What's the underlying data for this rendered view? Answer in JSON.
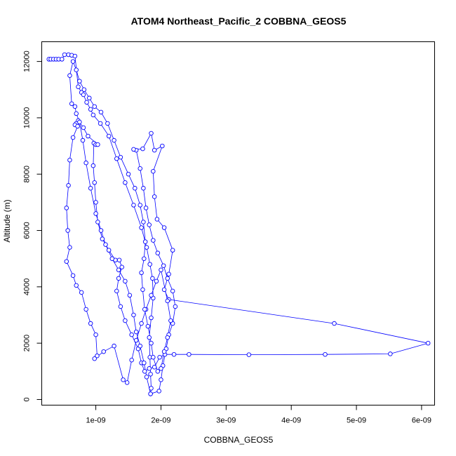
{
  "chart_data": {
    "type": "scatter",
    "title": "ATOM4 Northeast_Pacific_2 COBBNA_GEOS5",
    "xlabel": "COBBNA_GEOS5",
    "ylabel": "Altitude (m)",
    "xlim": [
      1.7e-10,
      6.2e-09
    ],
    "ylim": [
      -200,
      12700
    ],
    "x_ticks": [
      1e-09,
      2e-09,
      3e-09,
      4e-09,
      5e-09,
      6e-09
    ],
    "x_tick_labels": [
      "1e-09",
      "2e-09",
      "3e-09",
      "4e-09",
      "5e-09",
      "6e-09"
    ],
    "y_ticks": [
      0,
      2000,
      4000,
      6000,
      8000,
      10000,
      12000
    ],
    "y_tick_labels": [
      "0",
      "2000",
      "4000",
      "6000",
      "8000",
      "10000",
      "12000"
    ],
    "grid": false,
    "series": [
      {
        "color": "#0000ff",
        "marker": "open-circle",
        "connected": true,
        "points": [
          [
            2.8e-10,
            12080
          ],
          [
            3.1e-10,
            12080
          ],
          [
            3.5e-10,
            12080
          ],
          [
            3.9e-10,
            12080
          ],
          [
            4.3e-10,
            12080
          ],
          [
            4.8e-10,
            12080
          ],
          [
            5.2e-10,
            12240
          ],
          [
            5.8e-10,
            12240
          ],
          [
            6.3e-10,
            12220
          ],
          [
            6.8e-10,
            12190
          ],
          [
            7.3e-10,
            11100
          ],
          [
            7.8e-10,
            10900
          ],
          [
            8.1e-10,
            10820
          ],
          [
            8.6e-10,
            10550
          ],
          [
            9.2e-10,
            10300
          ],
          [
            9.6e-10,
            10100
          ],
          [
            1.07e-09,
            9800
          ],
          [
            1.2e-09,
            9350
          ],
          [
            1.32e-09,
            8550
          ],
          [
            1.45e-09,
            7700
          ],
          [
            1.58e-09,
            6900
          ],
          [
            1.7e-09,
            6100
          ],
          [
            1.78e-09,
            5400
          ],
          [
            1.83e-09,
            4800
          ],
          [
            1.87e-09,
            4300
          ],
          [
            1.88e-09,
            3600
          ],
          [
            1.85e-09,
            2900
          ],
          [
            1.82e-09,
            2200
          ],
          [
            1.83e-09,
            1500
          ],
          [
            1.84e-09,
            900
          ],
          [
            1.85e-09,
            400
          ],
          [
            1.84e-09,
            200
          ],
          [
            1.97e-09,
            300
          ],
          [
            2e-09,
            700
          ],
          [
            2.03e-09,
            1200
          ],
          [
            2.08e-09,
            1800
          ],
          [
            2.12e-09,
            2300
          ],
          [
            2.18e-09,
            2700
          ],
          [
            2.22e-09,
            3300
          ],
          [
            2.18e-09,
            3850
          ],
          [
            2.1e-09,
            4300
          ],
          [
            2.04e-09,
            4750
          ],
          [
            1.95e-09,
            5200
          ],
          [
            1.88e-09,
            5650
          ],
          [
            1.82e-09,
            6200
          ],
          [
            1.77e-09,
            6800
          ],
          [
            1.73e-09,
            7500
          ],
          [
            1.68e-09,
            8200
          ],
          [
            1.62e-09,
            8850
          ],
          [
            1.58e-09,
            8880
          ],
          [
            1.72e-09,
            8900
          ],
          [
            1.85e-09,
            9450
          ],
          [
            1.9e-09,
            8850
          ],
          [
            2.02e-09,
            9000
          ],
          [
            1.88e-09,
            8100
          ],
          [
            1.9e-09,
            7200
          ],
          [
            1.94e-09,
            6400
          ],
          [
            2.05e-09,
            6100
          ],
          [
            2.18e-09,
            5300
          ],
          [
            2.12e-09,
            4450
          ],
          [
            2.05e-09,
            3900
          ],
          [
            2.12e-09,
            3550
          ],
          [
            4.66e-09,
            2700
          ],
          [
            6.1e-09,
            2000
          ],
          [
            5.52e-09,
            1620
          ],
          [
            4.52e-09,
            1600
          ],
          [
            3.35e-09,
            1590
          ],
          [
            2.43e-09,
            1600
          ],
          [
            2.2e-09,
            1600
          ],
          [
            2.06e-09,
            1600
          ],
          [
            1.98e-09,
            1500
          ],
          [
            1.9e-09,
            1150
          ],
          [
            1.82e-09,
            1100
          ],
          [
            1.75e-09,
            1000
          ],
          [
            1.7e-09,
            1300
          ],
          [
            1.65e-09,
            1800
          ],
          [
            1.55e-09,
            2300
          ],
          [
            1.45e-09,
            2800
          ],
          [
            1.38e-09,
            3300
          ],
          [
            1.32e-09,
            3850
          ],
          [
            1.35e-09,
            4300
          ],
          [
            1.4e-09,
            4700
          ],
          [
            1.36e-09,
            4950
          ],
          [
            1.3e-09,
            4950
          ],
          [
            1.2e-09,
            5300
          ],
          [
            1.1e-09,
            5700
          ],
          [
            1.03e-09,
            6300
          ],
          [
            1e-09,
            7000
          ],
          [
            9.8e-10,
            7700
          ],
          [
            9.6e-10,
            8300
          ],
          [
            9.7e-10,
            9100
          ],
          [
            1e-09,
            9050
          ],
          [
            1.03e-09,
            9050
          ],
          [
            8.8e-10,
            9350
          ],
          [
            8.1e-10,
            9650
          ],
          [
            7.3e-10,
            9900
          ],
          [
            7e-10,
            9800
          ],
          [
            6.8e-10,
            9750
          ],
          [
            7.2e-10,
            9700
          ],
          [
            6.5e-10,
            9300
          ],
          [
            6e-10,
            8500
          ],
          [
            5.8e-10,
            7600
          ],
          [
            5.5e-10,
            6800
          ],
          [
            5.7e-10,
            6000
          ],
          [
            6e-10,
            5400
          ],
          [
            5.5e-10,
            4900
          ],
          [
            6.5e-10,
            4400
          ],
          [
            7e-10,
            4050
          ],
          [
            7.8e-10,
            3800
          ],
          [
            8.5e-10,
            3200
          ],
          [
            9.2e-10,
            2700
          ],
          [
            1e-09,
            2300
          ],
          [
            1.02e-09,
            1550
          ],
          [
            9.8e-10,
            1450
          ],
          [
            1.12e-09,
            1700
          ],
          [
            1.28e-09,
            1900
          ],
          [
            1.42e-09,
            700
          ],
          [
            1.48e-09,
            600
          ],
          [
            1.55e-09,
            1400
          ],
          [
            1.62e-09,
            2100
          ],
          [
            1.7e-09,
            2700
          ],
          [
            1.77e-09,
            3200
          ],
          [
            1.85e-09,
            3700
          ],
          [
            1.93e-09,
            4200
          ],
          [
            2e-09,
            4600
          ],
          [
            2.1e-09,
            3500
          ],
          [
            2.15e-09,
            2800
          ],
          [
            2.1e-09,
            2200
          ],
          [
            2.05e-09,
            1700
          ],
          [
            2e-09,
            1100
          ],
          [
            1.95e-09,
            1000
          ],
          [
            1.88e-09,
            1500
          ],
          [
            1.85e-09,
            2000
          ],
          [
            1.8e-09,
            2600
          ],
          [
            1.75e-09,
            3200
          ],
          [
            1.72e-09,
            3900
          ],
          [
            1.7e-09,
            4500
          ],
          [
            1.74e-09,
            5000
          ],
          [
            1.76e-09,
            5600
          ],
          [
            1.73e-09,
            6300
          ],
          [
            1.68e-09,
            6900
          ],
          [
            1.6e-09,
            7500
          ],
          [
            1.5e-09,
            8000
          ],
          [
            1.38e-09,
            8600
          ],
          [
            1.28e-09,
            9200
          ],
          [
            1.18e-09,
            9800
          ],
          [
            1.08e-09,
            10200
          ],
          [
            9.8e-10,
            10400
          ],
          [
            9e-10,
            10700
          ],
          [
            8.2e-10,
            11000
          ],
          [
            7.5e-10,
            11300
          ],
          [
            7e-10,
            11700
          ],
          [
            6.5e-10,
            12000
          ],
          [
            6e-10,
            11500
          ],
          [
            6.3e-10,
            10500
          ],
          [
            6.8e-10,
            10400
          ],
          [
            7e-10,
            10150
          ],
          [
            7.5e-10,
            9850
          ],
          [
            8e-10,
            9200
          ],
          [
            8.5e-10,
            8400
          ],
          [
            9.2e-10,
            7500
          ],
          [
            1e-09,
            6600
          ],
          [
            1.08e-09,
            6000
          ],
          [
            1.15e-09,
            5500
          ],
          [
            1.25e-09,
            5000
          ],
          [
            1.35e-09,
            4600
          ],
          [
            1.45e-09,
            4200
          ],
          [
            1.52e-09,
            3700
          ],
          [
            1.58e-09,
            3000
          ],
          [
            1.62e-09,
            2400
          ],
          [
            1.68e-09,
            1900
          ],
          [
            1.74e-09,
            1300
          ],
          [
            1.78e-09,
            800
          ],
          [
            1.84e-09,
            200
          ]
        ]
      }
    ]
  }
}
